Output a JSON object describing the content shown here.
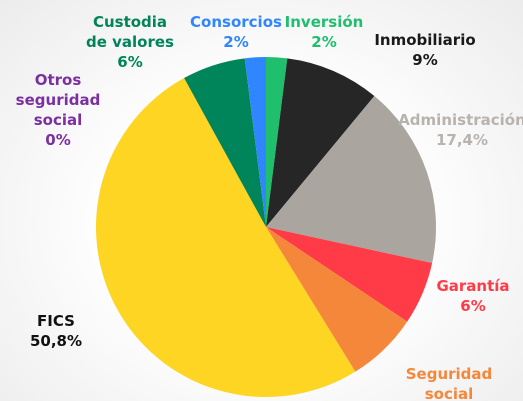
{
  "chart_data": {
    "type": "pie",
    "categories": [
      "Inversión",
      "Inmobiliario",
      "Administración",
      "Garantía",
      "Seguridad social",
      "FICS",
      "Otros seguridad social",
      "Custodia de valores",
      "Consorcios"
    ],
    "values": [
      2,
      9,
      17.4,
      6,
      6.8,
      50.8,
      0,
      6,
      2
    ],
    "value_labels": [
      "2%",
      "9%",
      "17,4%",
      "6%",
      null,
      "50,8%",
      "0%",
      "6%",
      "2%"
    ],
    "colors": [
      "#1fbf6e",
      "#262626",
      "#aaa59f",
      "#ff3b47",
      "#f5873b",
      "#fdd522",
      "#7b2fa0",
      "#00845a",
      "#2f86ff"
    ],
    "label_colors": [
      "#1fbf6e",
      "#1a1a1a",
      "#b8b3ad",
      "#ff3b47",
      "#f5873b",
      "#111111",
      "#7b2fa0",
      "#00845a",
      "#2f86ff"
    ]
  }
}
